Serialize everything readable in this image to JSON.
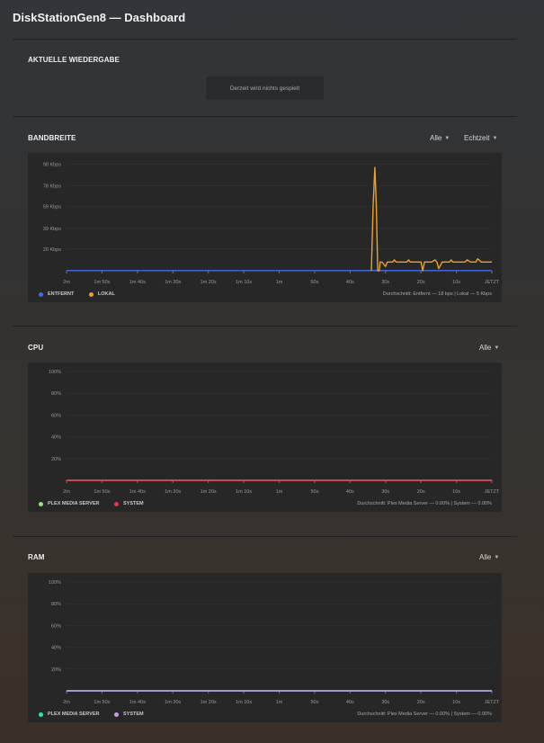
{
  "page": {
    "title": "DiskStationGen8 — Dashboard"
  },
  "now_playing": {
    "title": "AKTUELLE WIEDERGABE",
    "message": "Derzeit wird nichts gespielt"
  },
  "bandwidth": {
    "title": "BANDBREITE",
    "filter_label": "Alle",
    "period_label": "Echtzeit",
    "legend": [
      {
        "label": "ENTFERNT",
        "color": "#3d6cf0"
      },
      {
        "label": "LOKAL",
        "color": "#eaa228"
      }
    ],
    "average": "Durchschnitt: Entfernt — 18 bps | Lokal — 5 Kbps"
  },
  "cpu": {
    "title": "CPU",
    "filter_label": "Alle",
    "legend": [
      {
        "label": "PLEX MEDIA SERVER",
        "color": "#9be08c"
      },
      {
        "label": "SYSTEM",
        "color": "#e8364e"
      }
    ],
    "average": "Durchschnitt: Plex Media Server — 0.00% | System — 0.00%"
  },
  "ram": {
    "title": "RAM",
    "filter_label": "Alle",
    "legend": [
      {
        "label": "PLEX MEDIA SERVER",
        "color": "#2de6b4"
      },
      {
        "label": "SYSTEM",
        "color": "#c79ee6"
      }
    ],
    "average": "Durchschnitt: Plex Media Server — 0.00% | System — 0.00%"
  },
  "chart_data": [
    {
      "type": "line",
      "ylabel": "",
      "xlabel": "",
      "categories": [
        "2m",
        "1m 50s",
        "1m 40s",
        "1m 30s",
        "1m 20s",
        "1m 10s",
        "1m",
        "50s",
        "40s",
        "30s",
        "20s",
        "10s",
        "JETZT"
      ],
      "y_ticks": [
        "98 Kbps",
        "78 Kbps",
        "59 Kbps",
        "39 Kbps",
        "20 Kbps"
      ],
      "y_tick_values": [
        98,
        78,
        59,
        39,
        20
      ],
      "ylim": [
        0,
        100
      ],
      "xlim": [
        120,
        0
      ],
      "x_unit": "seconds ago",
      "grid": true,
      "legend_position": "bottom-left",
      "series": [
        {
          "name": "ENTFERNT",
          "color": "#3d6cf0",
          "x": [
            120,
            0
          ],
          "y": [
            0.2,
            0.2
          ]
        },
        {
          "name": "LOKAL",
          "color": "#eaa228",
          "x": [
            34,
            33.5,
            33,
            32.6,
            32.2,
            32,
            31.8,
            31.5,
            31,
            30,
            29.5,
            29,
            28,
            27.5,
            27,
            26,
            24,
            23.5,
            23,
            22.5,
            22,
            21,
            20,
            19.5,
            19,
            18,
            17,
            16,
            15.5,
            15,
            14,
            13,
            12,
            11.5,
            11,
            10,
            9,
            8,
            7.5,
            7,
            6,
            5,
            4.5,
            4,
            3,
            2,
            1,
            0
          ],
          "y": [
            0,
            60,
            95,
            60,
            0,
            0,
            0,
            8,
            8,
            4,
            8,
            8,
            8,
            10,
            8,
            8,
            8,
            10,
            8,
            8,
            8,
            8,
            8,
            0,
            8,
            8,
            8,
            10,
            8,
            2,
            8,
            8,
            8,
            10,
            8,
            8,
            8,
            8,
            8,
            10,
            8,
            8,
            8,
            11,
            8,
            8,
            8,
            8
          ]
        }
      ]
    },
    {
      "type": "line",
      "ylabel": "",
      "xlabel": "",
      "categories": [
        "2m",
        "1m 50s",
        "1m 40s",
        "1m 30s",
        "1m 20s",
        "1m 10s",
        "1m",
        "50s",
        "40s",
        "30s",
        "20s",
        "10s",
        "JETZT"
      ],
      "y_ticks": [
        "100%",
        "80%",
        "60%",
        "40%",
        "20%"
      ],
      "y_tick_values": [
        100,
        80,
        60,
        40,
        20
      ],
      "ylim": [
        0,
        100
      ],
      "grid": true,
      "legend_position": "bottom-left",
      "series": [
        {
          "name": "PLEX MEDIA SERVER",
          "color": "#9be08c",
          "values": [
            0,
            0,
            0,
            0,
            0,
            0,
            0,
            0,
            0,
            0,
            0,
            0,
            0
          ]
        },
        {
          "name": "SYSTEM",
          "color": "#e8364e",
          "values": [
            0,
            0,
            0,
            0,
            0,
            0,
            0,
            0,
            0,
            0,
            0,
            0,
            0
          ]
        }
      ]
    },
    {
      "type": "line",
      "ylabel": "",
      "xlabel": "",
      "categories": [
        "2m",
        "1m 50s",
        "1m 40s",
        "1m 30s",
        "1m 20s",
        "1m 10s",
        "1m",
        "50s",
        "40s",
        "30s",
        "20s",
        "10s",
        "JETZT"
      ],
      "y_ticks": [
        "100%",
        "80%",
        "60%",
        "40%",
        "20%"
      ],
      "y_tick_values": [
        100,
        80,
        60,
        40,
        20
      ],
      "ylim": [
        0,
        100
      ],
      "grid": true,
      "legend_position": "bottom-left",
      "series": [
        {
          "name": "PLEX MEDIA SERVER",
          "color": "#2de6b4",
          "values": [
            0,
            0,
            0,
            0,
            0,
            0,
            0,
            0,
            0,
            0,
            0,
            0,
            0
          ]
        },
        {
          "name": "SYSTEM",
          "color": "#c79ee6",
          "values": [
            0,
            0,
            0,
            0,
            0,
            0,
            0,
            0,
            0,
            0,
            0,
            0,
            0
          ]
        }
      ]
    }
  ]
}
